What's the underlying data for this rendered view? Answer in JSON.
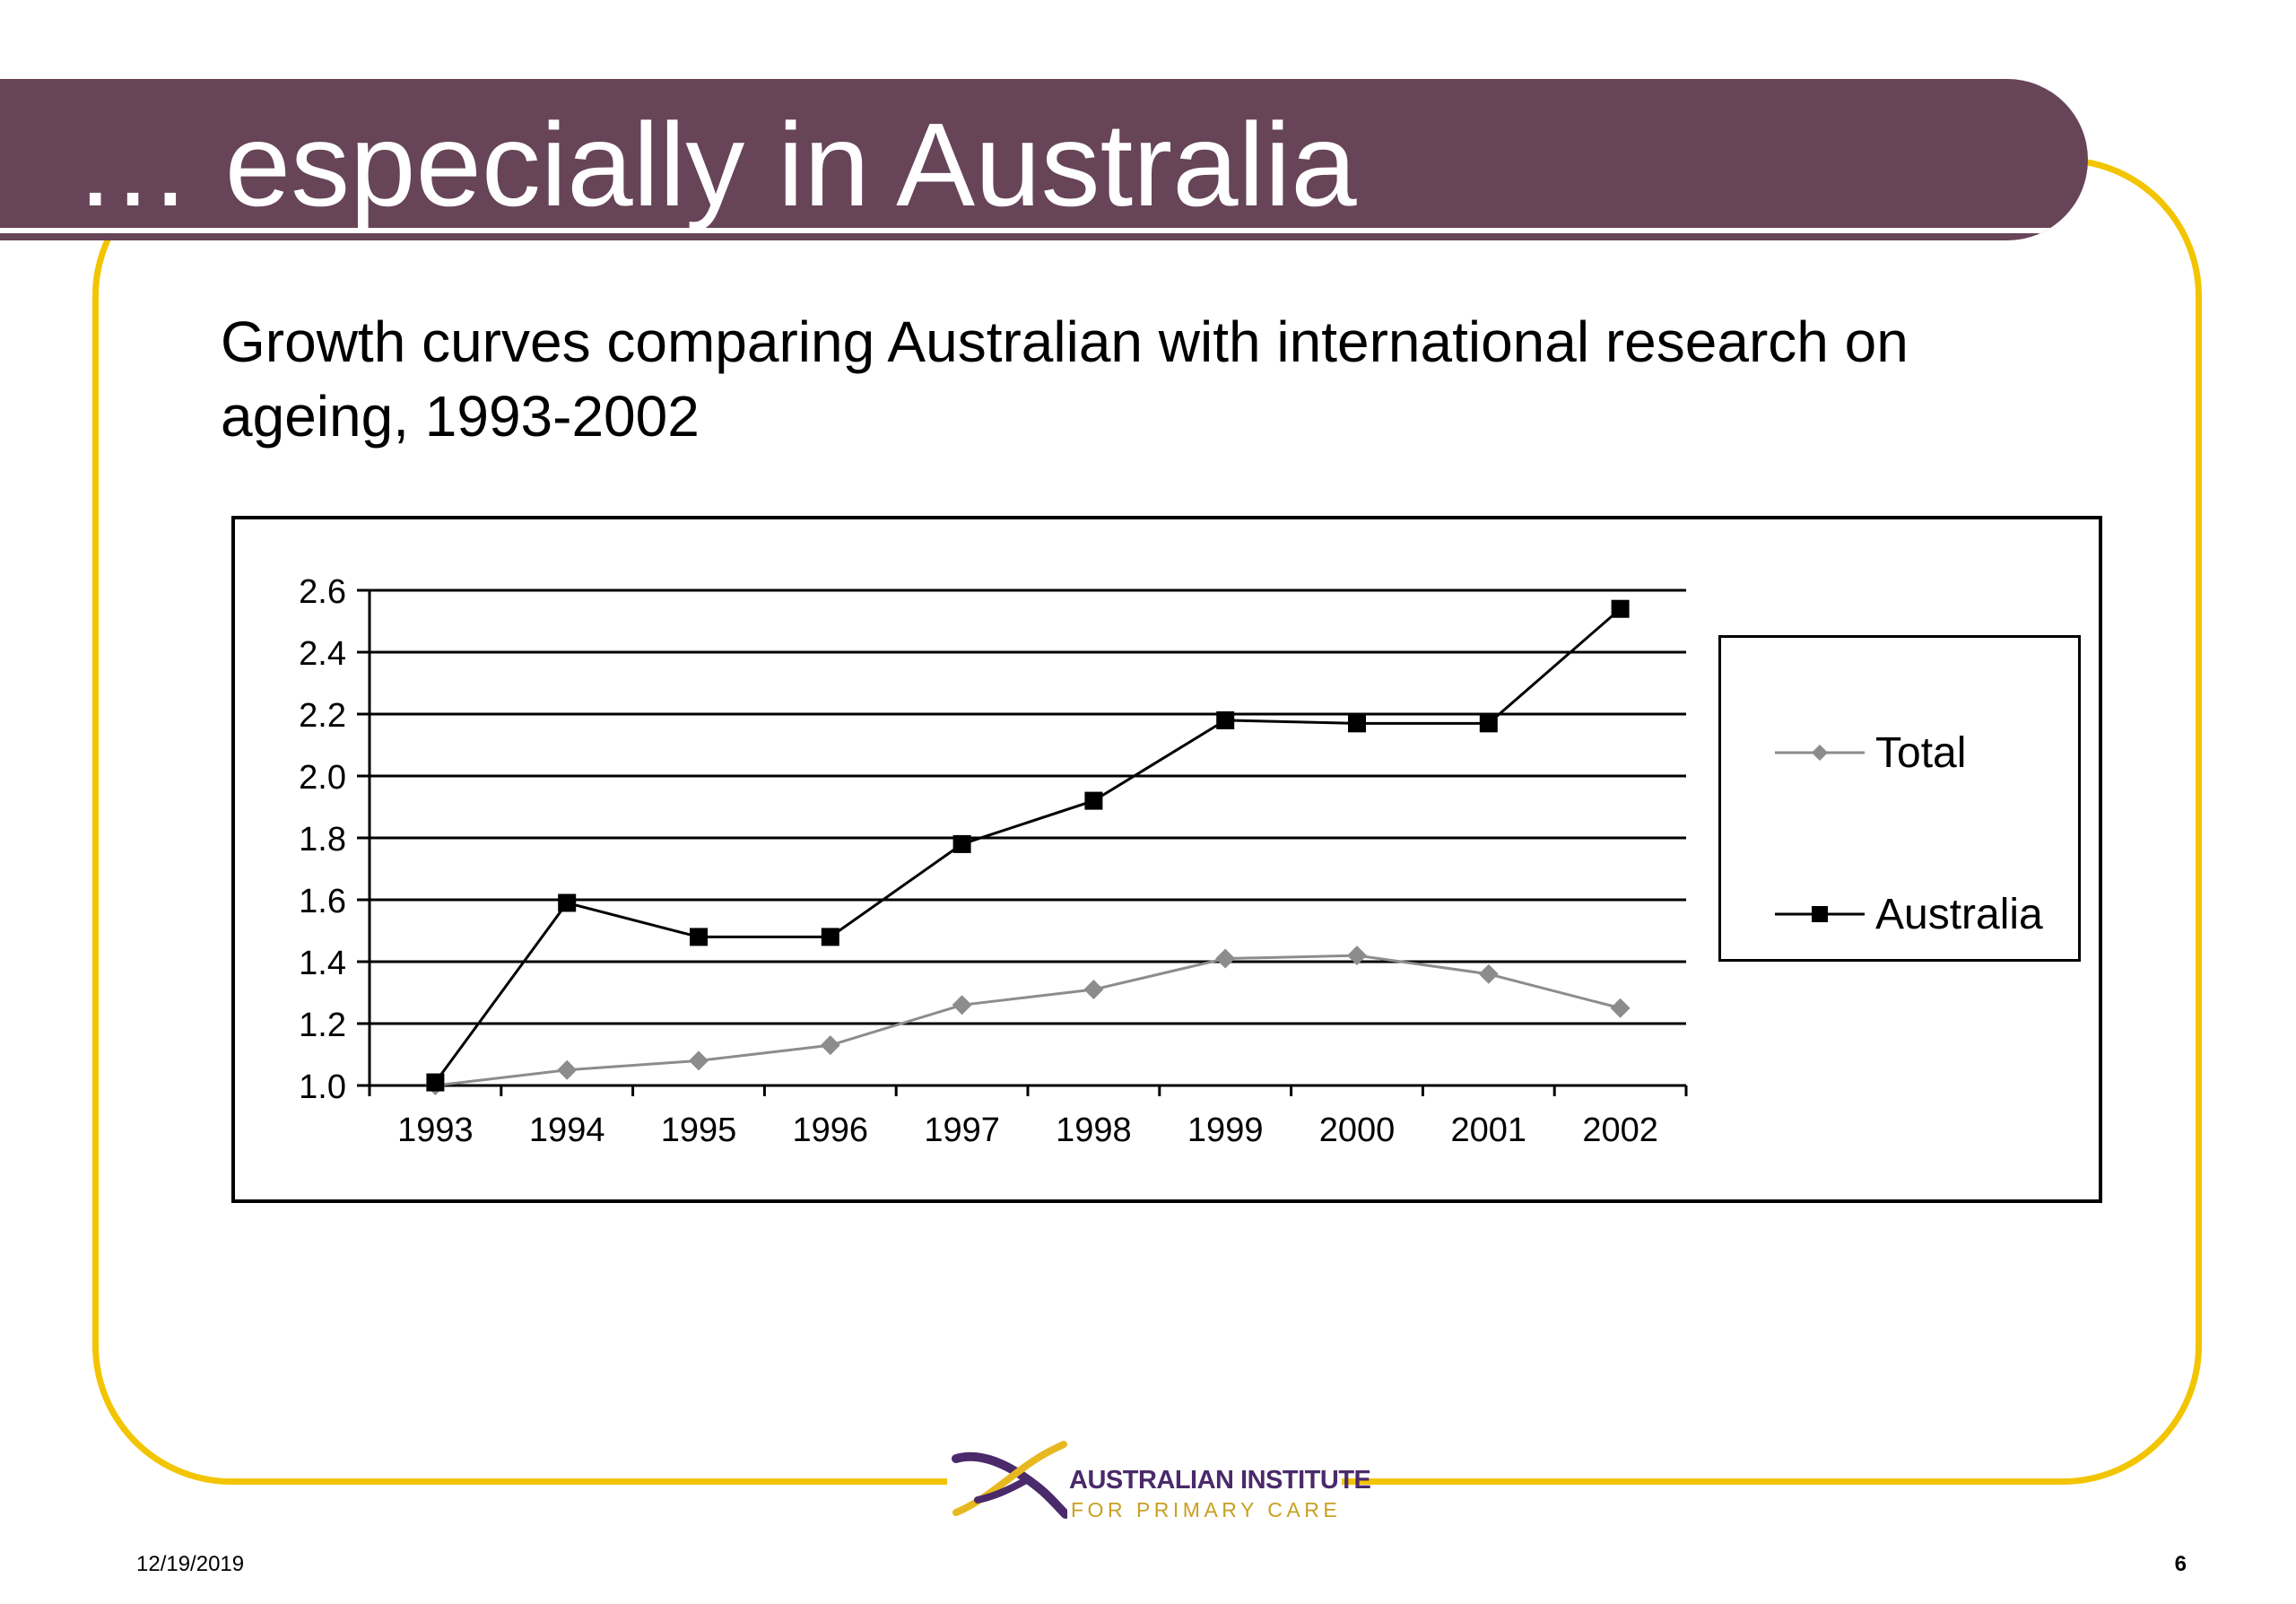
{
  "slide": {
    "title": "… especially in Australia",
    "subtitle": "Growth curves comparing Australian with international research on ageing, 1993-2002",
    "date": "12/19/2019",
    "page_number": "6",
    "logo": {
      "line1": "AUSTRALIAN INSTITUTE",
      "line2": "FOR PRIMARY CARE"
    },
    "colors": {
      "title_bar": "#674458",
      "frame": "#f2c500"
    }
  },
  "chart_data": {
    "type": "line",
    "title": "",
    "xlabel": "",
    "ylabel": "",
    "categories": [
      "1993",
      "1994",
      "1995",
      "1996",
      "1997",
      "1998",
      "1999",
      "2000",
      "2001",
      "2002"
    ],
    "y_ticks": [
      "1.0",
      "1.2",
      "1.4",
      "1.6",
      "1.8",
      "2.0",
      "2.2",
      "2.4",
      "2.6"
    ],
    "ylim": [
      1.0,
      2.6
    ],
    "grid": "horizontal",
    "legend_position": "right",
    "series": [
      {
        "name": "Total",
        "marker": "diamond",
        "color": "#8c8c8c",
        "values": [
          1.0,
          1.05,
          1.08,
          1.13,
          1.26,
          1.31,
          1.41,
          1.42,
          1.36,
          1.25
        ]
      },
      {
        "name": "Australia",
        "marker": "square",
        "color": "#000000",
        "values": [
          1.01,
          1.59,
          1.48,
          1.48,
          1.78,
          1.92,
          2.18,
          2.17,
          2.17,
          2.54
        ]
      }
    ]
  }
}
